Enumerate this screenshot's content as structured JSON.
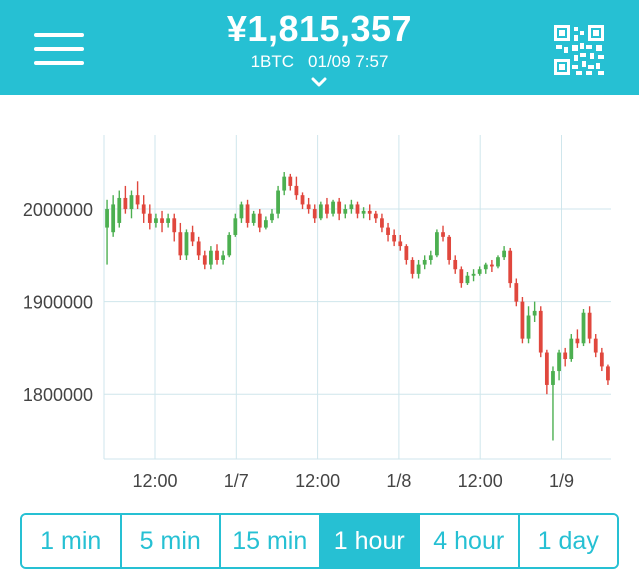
{
  "header": {
    "price": "¥1,815,357",
    "unit": "1BTC",
    "timestamp": "01/09 7:57",
    "menu_icon": "hamburger-menu-icon",
    "qr_icon": "qr-code-icon",
    "expand_icon": "chevron-down-icon"
  },
  "colors": {
    "brand": "#26c0d3",
    "up": "#4caf50",
    "down": "#e0473d",
    "grid": "#cfe6ec"
  },
  "timeframes": {
    "items": [
      "1 min",
      "5 min",
      "15 min",
      "1 hour",
      "4 hour",
      "1 day"
    ],
    "selected": "1 hour"
  },
  "chart_data": {
    "type": "candlestick",
    "ylim": [
      1730000,
      2080000
    ],
    "yticks": [
      {
        "value": 2000000,
        "label": "2000000"
      },
      {
        "value": 1900000,
        "label": "1900000"
      },
      {
        "value": 1800000,
        "label": "1800000"
      }
    ],
    "xticks": [
      "12:00",
      "1/7",
      "12:00",
      "1/8",
      "12:00",
      "1/9"
    ],
    "grid": true,
    "candles": [
      [
        1980000,
        2010000,
        2000000,
        1940000
      ],
      [
        1975000,
        2015000,
        2005000,
        1970000
      ],
      [
        1985000,
        2020000,
        2012000,
        1980000
      ],
      [
        2012000,
        2025000,
        2000000,
        1995000
      ],
      [
        2000000,
        2020000,
        2015000,
        1990000
      ],
      [
        2015000,
        2030000,
        2005000,
        2000000
      ],
      [
        2005000,
        2015000,
        1995000,
        1985000
      ],
      [
        1995000,
        2005000,
        1985000,
        1978000
      ],
      [
        1985000,
        1995000,
        1990000,
        1980000
      ],
      [
        1990000,
        1998000,
        1985000,
        1975000
      ],
      [
        1985000,
        1995000,
        1990000,
        1980000
      ],
      [
        1990000,
        1995000,
        1975000,
        1965000
      ],
      [
        1975000,
        1985000,
        1950000,
        1945000
      ],
      [
        1950000,
        1978000,
        1975000,
        1945000
      ],
      [
        1975000,
        1982000,
        1965000,
        1960000
      ],
      [
        1965000,
        1970000,
        1950000,
        1945000
      ],
      [
        1950000,
        1955000,
        1940000,
        1935000
      ],
      [
        1940000,
        1960000,
        1955000,
        1935000
      ],
      [
        1955000,
        1962000,
        1945000,
        1940000
      ],
      [
        1945000,
        1955000,
        1950000,
        1940000
      ],
      [
        1950000,
        1975000,
        1972000,
        1948000
      ],
      [
        1972000,
        1995000,
        1990000,
        1970000
      ],
      [
        1990000,
        2008000,
        2005000,
        1985000
      ],
      [
        2005000,
        2010000,
        1985000,
        1980000
      ],
      [
        1985000,
        1998000,
        1995000,
        1982000
      ],
      [
        1995000,
        2000000,
        1980000,
        1975000
      ],
      [
        1980000,
        1992000,
        1988000,
        1978000
      ],
      [
        1988000,
        2000000,
        1995000,
        1985000
      ],
      [
        1995000,
        2025000,
        2020000,
        1990000
      ],
      [
        2020000,
        2040000,
        2035000,
        2015000
      ],
      [
        2035000,
        2038000,
        2025000,
        2020000
      ],
      [
        2025000,
        2035000,
        2015000,
        2010000
      ],
      [
        2015000,
        2018000,
        2005000,
        2000000
      ],
      [
        2005000,
        2012000,
        2000000,
        1995000
      ],
      [
        2000000,
        2005000,
        1990000,
        1985000
      ],
      [
        1990000,
        2008000,
        2005000,
        1988000
      ],
      [
        2005000,
        2012000,
        1995000,
        1990000
      ],
      [
        1995000,
        2010000,
        2008000,
        1992000
      ],
      [
        2008000,
        2012000,
        1995000,
        1988000
      ],
      [
        1995000,
        2005000,
        2000000,
        1990000
      ],
      [
        2000000,
        2010000,
        2005000,
        1995000
      ],
      [
        2005000,
        2008000,
        1995000,
        1990000
      ],
      [
        1995000,
        2002000,
        1998000,
        1990000
      ],
      [
        1998000,
        2005000,
        1995000,
        1988000
      ],
      [
        1995000,
        1998000,
        1990000,
        1985000
      ],
      [
        1990000,
        1995000,
        1980000,
        1975000
      ],
      [
        1980000,
        1985000,
        1972000,
        1965000
      ],
      [
        1972000,
        1978000,
        1965000,
        1960000
      ],
      [
        1965000,
        1972000,
        1960000,
        1955000
      ],
      [
        1960000,
        1962000,
        1945000,
        1940000
      ],
      [
        1945000,
        1948000,
        1930000,
        1925000
      ],
      [
        1930000,
        1945000,
        1940000,
        1925000
      ],
      [
        1940000,
        1950000,
        1945000,
        1935000
      ],
      [
        1945000,
        1955000,
        1950000,
        1940000
      ],
      [
        1950000,
        1978000,
        1975000,
        1948000
      ],
      [
        1975000,
        1982000,
        1970000,
        1965000
      ],
      [
        1970000,
        1972000,
        1945000,
        1940000
      ],
      [
        1945000,
        1950000,
        1935000,
        1930000
      ],
      [
        1935000,
        1938000,
        1920000,
        1915000
      ],
      [
        1920000,
        1932000,
        1928000,
        1918000
      ],
      [
        1928000,
        1935000,
        1930000,
        1922000
      ],
      [
        1930000,
        1938000,
        1935000,
        1928000
      ],
      [
        1935000,
        1942000,
        1940000,
        1930000
      ],
      [
        1940000,
        1945000,
        1938000,
        1932000
      ],
      [
        1938000,
        1950000,
        1948000,
        1936000
      ],
      [
        1948000,
        1960000,
        1955000,
        1945000
      ],
      [
        1955000,
        1958000,
        1920000,
        1915000
      ],
      [
        1920000,
        1925000,
        1900000,
        1895000
      ],
      [
        1900000,
        1905000,
        1860000,
        1855000
      ],
      [
        1860000,
        1895000,
        1885000,
        1855000
      ],
      [
        1885000,
        1900000,
        1890000,
        1878000
      ],
      [
        1890000,
        1895000,
        1845000,
        1840000
      ],
      [
        1845000,
        1848000,
        1810000,
        1800000
      ],
      [
        1810000,
        1830000,
        1825000,
        1750000
      ],
      [
        1825000,
        1848000,
        1845000,
        1815000
      ],
      [
        1845000,
        1850000,
        1838000,
        1830000
      ],
      [
        1838000,
        1865000,
        1860000,
        1835000
      ],
      [
        1860000,
        1870000,
        1855000,
        1850000
      ],
      [
        1855000,
        1892000,
        1888000,
        1852000
      ],
      [
        1888000,
        1895000,
        1860000,
        1855000
      ],
      [
        1860000,
        1865000,
        1845000,
        1840000
      ],
      [
        1845000,
        1850000,
        1830000,
        1825000
      ],
      [
        1830000,
        1832000,
        1815000,
        1810000
      ]
    ]
  }
}
